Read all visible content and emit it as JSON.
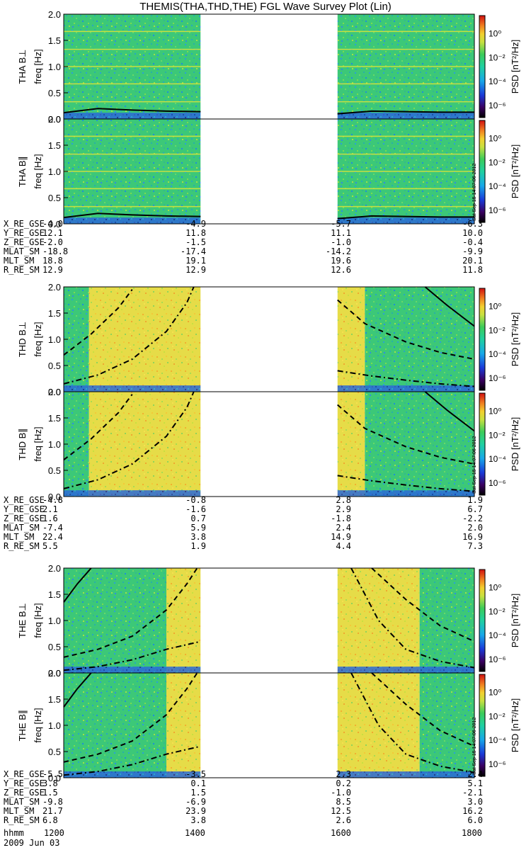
{
  "title": "THEMIS(THA,THD,THE) FGL Wave Survey Plot (Lin)",
  "date_label": "2009 Jun 03",
  "stamp": "Sat Sep 15 14:07:06 2012",
  "colorbar": {
    "label": "PSD [nT²/Hz]",
    "ticks": [
      "10⁰",
      "10⁻²",
      "10⁻⁴",
      "10⁻⁶"
    ],
    "log_range": [
      -7,
      1.5
    ]
  },
  "ytick_labels": [
    "0.0",
    "0.5",
    "1.0",
    "1.5",
    "2.0"
  ],
  "colors": {
    "green": "#3cc878",
    "yellow": "#f2dc3c",
    "blue": "#2a6ad8",
    "red": "#d83a20"
  },
  "chart_data": [
    {
      "type": "heatmap",
      "probe": "THA",
      "panels": [
        {
          "ylabel": "THA B⊥",
          "unit": "freq [Hz]"
        },
        {
          "ylabel": "THA B∥",
          "unit": "freq [Hz]"
        }
      ],
      "ylim": [
        0,
        2.0
      ],
      "xlim": [
        1200,
        1800
      ],
      "data_gaps": [
        [
          1400,
          1600
        ]
      ],
      "segments": [
        [
          1200,
          1400,
          "green"
        ],
        [
          1600,
          1800,
          "green"
        ]
      ],
      "harmonic_lines_hz": [
        0.33,
        0.67,
        1.0,
        1.33,
        1.67
      ],
      "ephemeris": [
        {
          "name": "X_RE_GSE",
          "values": [
            "-4.0",
            "-4.9",
            "-5.7",
            "-6.3"
          ]
        },
        {
          "name": "Y_RE_GSE",
          "values": [
            "12.1",
            "11.8",
            "11.1",
            "10.0"
          ]
        },
        {
          "name": "Z_RE_GSE",
          "values": [
            "-2.0",
            "-1.5",
            "-1.0",
            "-0.4"
          ]
        },
        {
          "name": "MLAT_SM",
          "values": [
            "-18.8",
            "-17.4",
            "-14.2",
            "-9.9"
          ]
        },
        {
          "name": "MLT_SM",
          "values": [
            "18.8",
            "19.1",
            "19.6",
            "20.1"
          ]
        },
        {
          "name": "R_RE_SM",
          "values": [
            "12.9",
            "12.9",
            "12.6",
            "11.8"
          ]
        }
      ],
      "curves": [
        {
          "style": "solid",
          "points": [
            [
              1200,
              0.12
            ],
            [
              1250,
              0.2
            ],
            [
              1300,
              0.17
            ],
            [
              1350,
              0.15
            ],
            [
              1400,
              0.14
            ],
            [
              1600,
              0.1
            ],
            [
              1650,
              0.15
            ],
            [
              1700,
              0.14
            ],
            [
              1750,
              0.13
            ],
            [
              1800,
              0.13
            ]
          ]
        }
      ]
    },
    {
      "type": "heatmap",
      "probe": "THD",
      "panels": [
        {
          "ylabel": "THD B⊥",
          "unit": "freq [Hz]"
        },
        {
          "ylabel": "THD B∥",
          "unit": "freq [Hz]"
        }
      ],
      "ylim": [
        0,
        2.0
      ],
      "xlim": [
        1200,
        1800
      ],
      "data_gaps": [
        [
          1400,
          1600
        ]
      ],
      "segments": [
        [
          1200,
          1237,
          "green"
        ],
        [
          1237,
          1400,
          "yellow"
        ],
        [
          1600,
          1640,
          "yellow"
        ],
        [
          1640,
          1800,
          "green"
        ]
      ],
      "ephemeris": [
        {
          "name": "X_RE_GSE",
          "values": [
            "-4.8",
            "-0.8",
            "2.8",
            "1.9"
          ]
        },
        {
          "name": "Y_RE_GSE",
          "values": [
            "2.1",
            "-1.6",
            "2.9",
            "6.7"
          ]
        },
        {
          "name": "Z_RE_GSE",
          "values": [
            "1.6",
            "0.7",
            "-1.8",
            "-2.2"
          ]
        },
        {
          "name": "MLAT_SM",
          "values": [
            "-7.4",
            "5.9",
            "2.4",
            "2.0"
          ]
        },
        {
          "name": "MLT_SM",
          "values": [
            "22.4",
            "3.8",
            "14.9",
            "16.9"
          ]
        },
        {
          "name": "R_RE_SM",
          "values": [
            "5.5",
            "1.9",
            "4.4",
            "7.3"
          ]
        }
      ],
      "curves": [
        {
          "style": "dashed",
          "points": [
            [
              1200,
              0.7
            ],
            [
              1240,
              1.1
            ],
            [
              1280,
              1.6
            ],
            [
              1300,
              1.95
            ],
            [
              1600,
              1.75
            ],
            [
              1640,
              1.3
            ],
            [
              1700,
              0.95
            ],
            [
              1750,
              0.75
            ],
            [
              1800,
              0.62
            ]
          ]
        },
        {
          "style": "dashdot",
          "points": [
            [
              1200,
              0.15
            ],
            [
              1250,
              0.32
            ],
            [
              1300,
              0.62
            ],
            [
              1350,
              1.15
            ],
            [
              1380,
              1.7
            ],
            [
              1390,
              2.0
            ],
            [
              1600,
              0.4
            ],
            [
              1650,
              0.3
            ],
            [
              1700,
              0.22
            ],
            [
              1750,
              0.15
            ],
            [
              1800,
              0.1
            ]
          ]
        },
        {
          "style": "solid",
          "points": [
            [
              1728,
              2.0
            ],
            [
              1760,
              1.65
            ],
            [
              1800,
              1.25
            ]
          ]
        }
      ]
    },
    {
      "type": "heatmap",
      "probe": "THE",
      "panels": [
        {
          "ylabel": "THE B⊥",
          "unit": "freq [Hz]"
        },
        {
          "ylabel": "THE B∥",
          "unit": "freq [Hz]"
        }
      ],
      "ylim": [
        0,
        2.0
      ],
      "xlim": [
        1200,
        1800
      ],
      "data_gaps": [
        [
          1400,
          1600
        ]
      ],
      "segments": [
        [
          1200,
          1350,
          "green"
        ],
        [
          1350,
          1400,
          "yellow"
        ],
        [
          1600,
          1720,
          "yellow"
        ],
        [
          1720,
          1800,
          "green"
        ]
      ],
      "ephemeris": [
        {
          "name": "X_RE_GSE",
          "values": [
            "-5.5",
            "-3.5",
            "2.3",
            "2.4"
          ]
        },
        {
          "name": "Y_RE_GSE",
          "values": [
            "3.8",
            "0.1",
            "0.2",
            "5.1"
          ]
        },
        {
          "name": "Z_RE_GSE",
          "values": [
            "1.5",
            "1.5",
            "-1.0",
            "-2.1"
          ]
        },
        {
          "name": "MLAT_SM",
          "values": [
            "-9.8",
            "-6.9",
            "8.5",
            "3.0"
          ]
        },
        {
          "name": "MLT_SM",
          "values": [
            "21.7",
            "23.9",
            "12.5",
            "16.2"
          ]
        },
        {
          "name": "R_RE_SM",
          "values": [
            "6.8",
            "3.8",
            "2.6",
            "6.0"
          ]
        }
      ],
      "curves": [
        {
          "style": "solid",
          "points": [
            [
              1200,
              1.35
            ],
            [
              1220,
              1.7
            ],
            [
              1240,
              2.0
            ]
          ]
        },
        {
          "style": "dashed",
          "points": [
            [
              1200,
              0.3
            ],
            [
              1250,
              0.45
            ],
            [
              1300,
              0.7
            ],
            [
              1350,
              1.2
            ],
            [
              1380,
              1.7
            ],
            [
              1395,
              2.0
            ],
            [
              1650,
              2.0
            ],
            [
              1700,
              1.4
            ],
            [
              1750,
              0.9
            ],
            [
              1800,
              0.6
            ]
          ]
        },
        {
          "style": "dashdot",
          "points": [
            [
              1200,
              0.05
            ],
            [
              1250,
              0.12
            ],
            [
              1300,
              0.25
            ],
            [
              1350,
              0.45
            ],
            [
              1400,
              0.6
            ],
            [
              1620,
              2.0
            ],
            [
              1660,
              1.0
            ],
            [
              1700,
              0.45
            ],
            [
              1750,
              0.22
            ],
            [
              1800,
              0.1
            ]
          ]
        }
      ]
    }
  ],
  "time_axis": {
    "label": "hhmm",
    "ticks": [
      "1200",
      "1400",
      "1600",
      "1800"
    ]
  }
}
